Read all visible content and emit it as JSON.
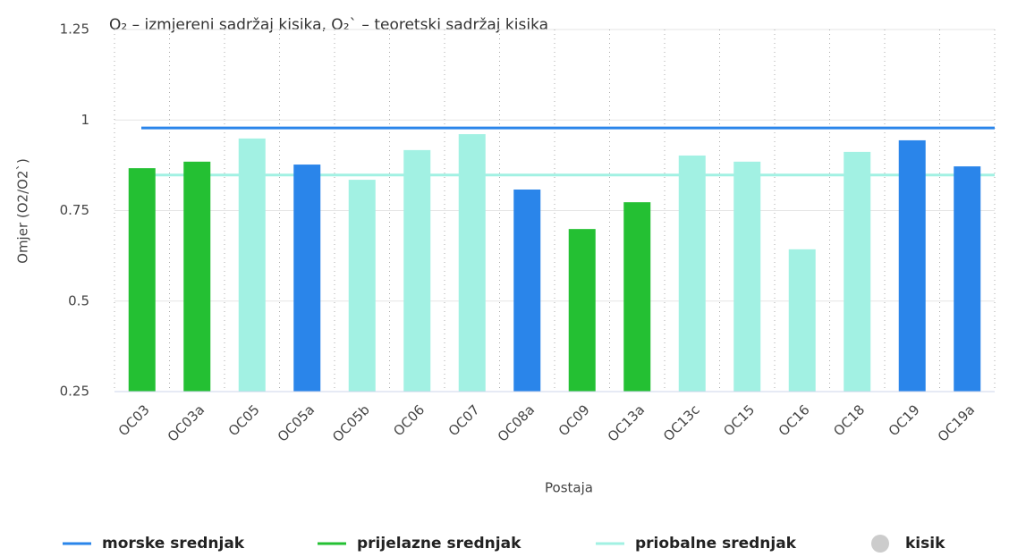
{
  "chart_data": {
    "type": "bar",
    "title": "O₂ – izmjereni sadržaj kisika, O₂` – teoretski sadržaj kisika",
    "x_label": "Postaja",
    "y_label": "Omjer (O2/O2`)",
    "categories": [
      "OC03",
      "OC03a",
      "OC05",
      "OC05a",
      "OC05b",
      "OC06",
      "OC07",
      "OC08a",
      "OC09",
      "OC13a",
      "OC13c",
      "OC15",
      "OC16",
      "OC18",
      "OC19",
      "OC19a"
    ],
    "series": [
      {
        "name": "kisik",
        "color": "#cccccc",
        "values": [
          0.867,
          0.885,
          0.949,
          0.877,
          0.835,
          0.917,
          0.961,
          0.808,
          0.699,
          0.773,
          0.902,
          0.885,
          0.643,
          0.912,
          0.944,
          0.872
        ],
        "colors": [
          "#24c033",
          "#24c033",
          "#a2f1e3",
          "#2a85ea",
          "#a2f1e3",
          "#a2f1e3",
          "#a2f1e3",
          "#2a85ea",
          "#24c033",
          "#24c033",
          "#a2f1e3",
          "#a2f1e3",
          "#a2f1e3",
          "#a2f1e3",
          "#2a85ea",
          "#2a85ea"
        ]
      }
    ],
    "reference_lines": [
      {
        "name": "morske srednjak",
        "color": "#2a85ea",
        "value": 0.978
      },
      {
        "name": "prijelazne srednjak",
        "color": "#24c033",
        "value": null
      },
      {
        "name": "priobalne srednjak",
        "color": "#a2f1e3",
        "value": 0.848
      }
    ],
    "ylim": [
      0.25,
      1.25
    ],
    "yticks": [
      0.25,
      0.5,
      0.75,
      1,
      1.25
    ],
    "grid": true
  }
}
